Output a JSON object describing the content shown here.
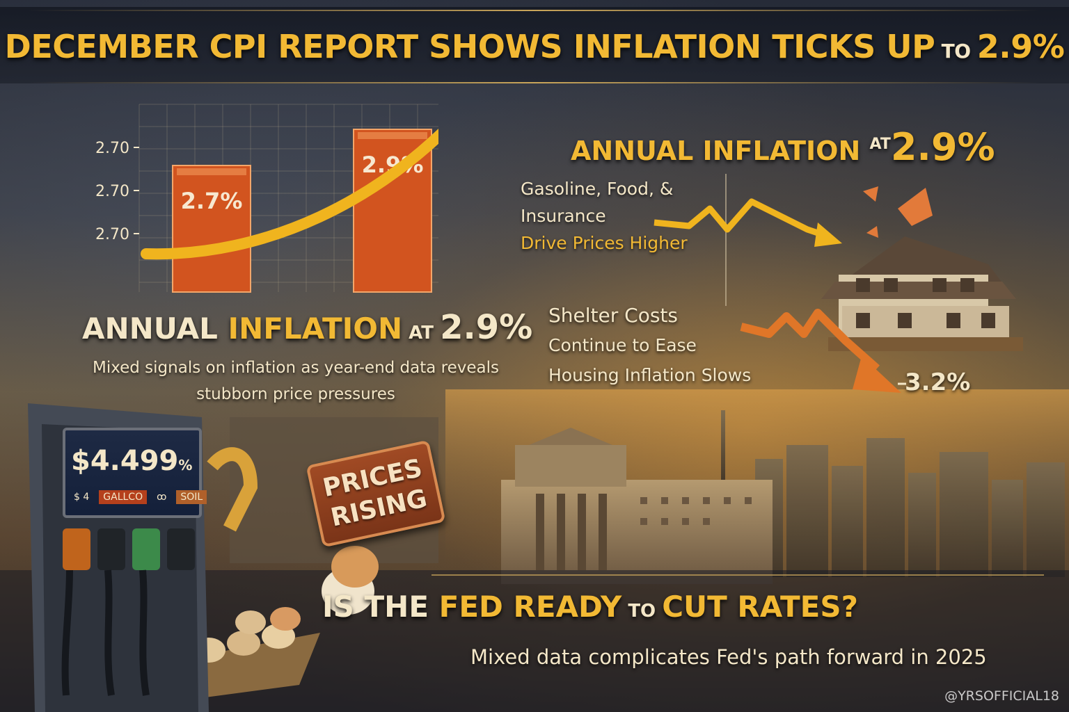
{
  "title": {
    "part1": "DECEMBER CPI REPORT SHOWS ",
    "part2": "INFLATION TICKS UP",
    "part3": " TO ",
    "part4": "2.9%"
  },
  "chart_data": {
    "type": "bar",
    "categories": [
      "",
      ""
    ],
    "values": [
      2.7,
      2.9
    ],
    "data_labels": [
      "2.7%",
      "2.9%"
    ],
    "ytick_labels": [
      "2.70",
      "2.70",
      "2.70"
    ],
    "title": "",
    "xlabel": "",
    "ylabel": "",
    "grid": true
  },
  "annual_headline_right": {
    "label": "ANNUAL INFLATION",
    "at": "AT",
    "value": "2.9%"
  },
  "drivers": {
    "line1": "Gasoline, Food, &",
    "line2": "Insurance",
    "line3": "Drive Prices Higher"
  },
  "annual_headline_left": {
    "part1": "ANNUAL ",
    "part2": "INFLATION",
    "at": " AT ",
    "value": "2.9%",
    "sub_line1": "Mixed signals on inflation as year-end data reveals",
    "sub_line2": "stubborn price pressures"
  },
  "shelter": {
    "line1": "Shelter Costs",
    "line2": "Continue to Ease",
    "line3": "Housing Inflation Slows",
    "value": "3.2%"
  },
  "gas_sign": {
    "price": "$4.499",
    "suffix": "%",
    "tags": [
      "$ 4",
      "GALLCO",
      "ꝏ",
      "SOIL"
    ]
  },
  "stamp": {
    "line1": "PRICES",
    "line2": "RISING"
  },
  "fed": {
    "part1": "IS THE ",
    "part2": "FED READY",
    "part3": " TO ",
    "part4": "CUT RATES?",
    "sub": "Mixed data complicates Fed's path forward in 2025"
  },
  "watermark": "@YRSOFFICIAL18",
  "colors": {
    "gold": "#f2b934",
    "cream": "#f4e7c8",
    "bar": "#d2541f",
    "arrow": "#f0b41e",
    "down_arrow": "#e07628"
  }
}
